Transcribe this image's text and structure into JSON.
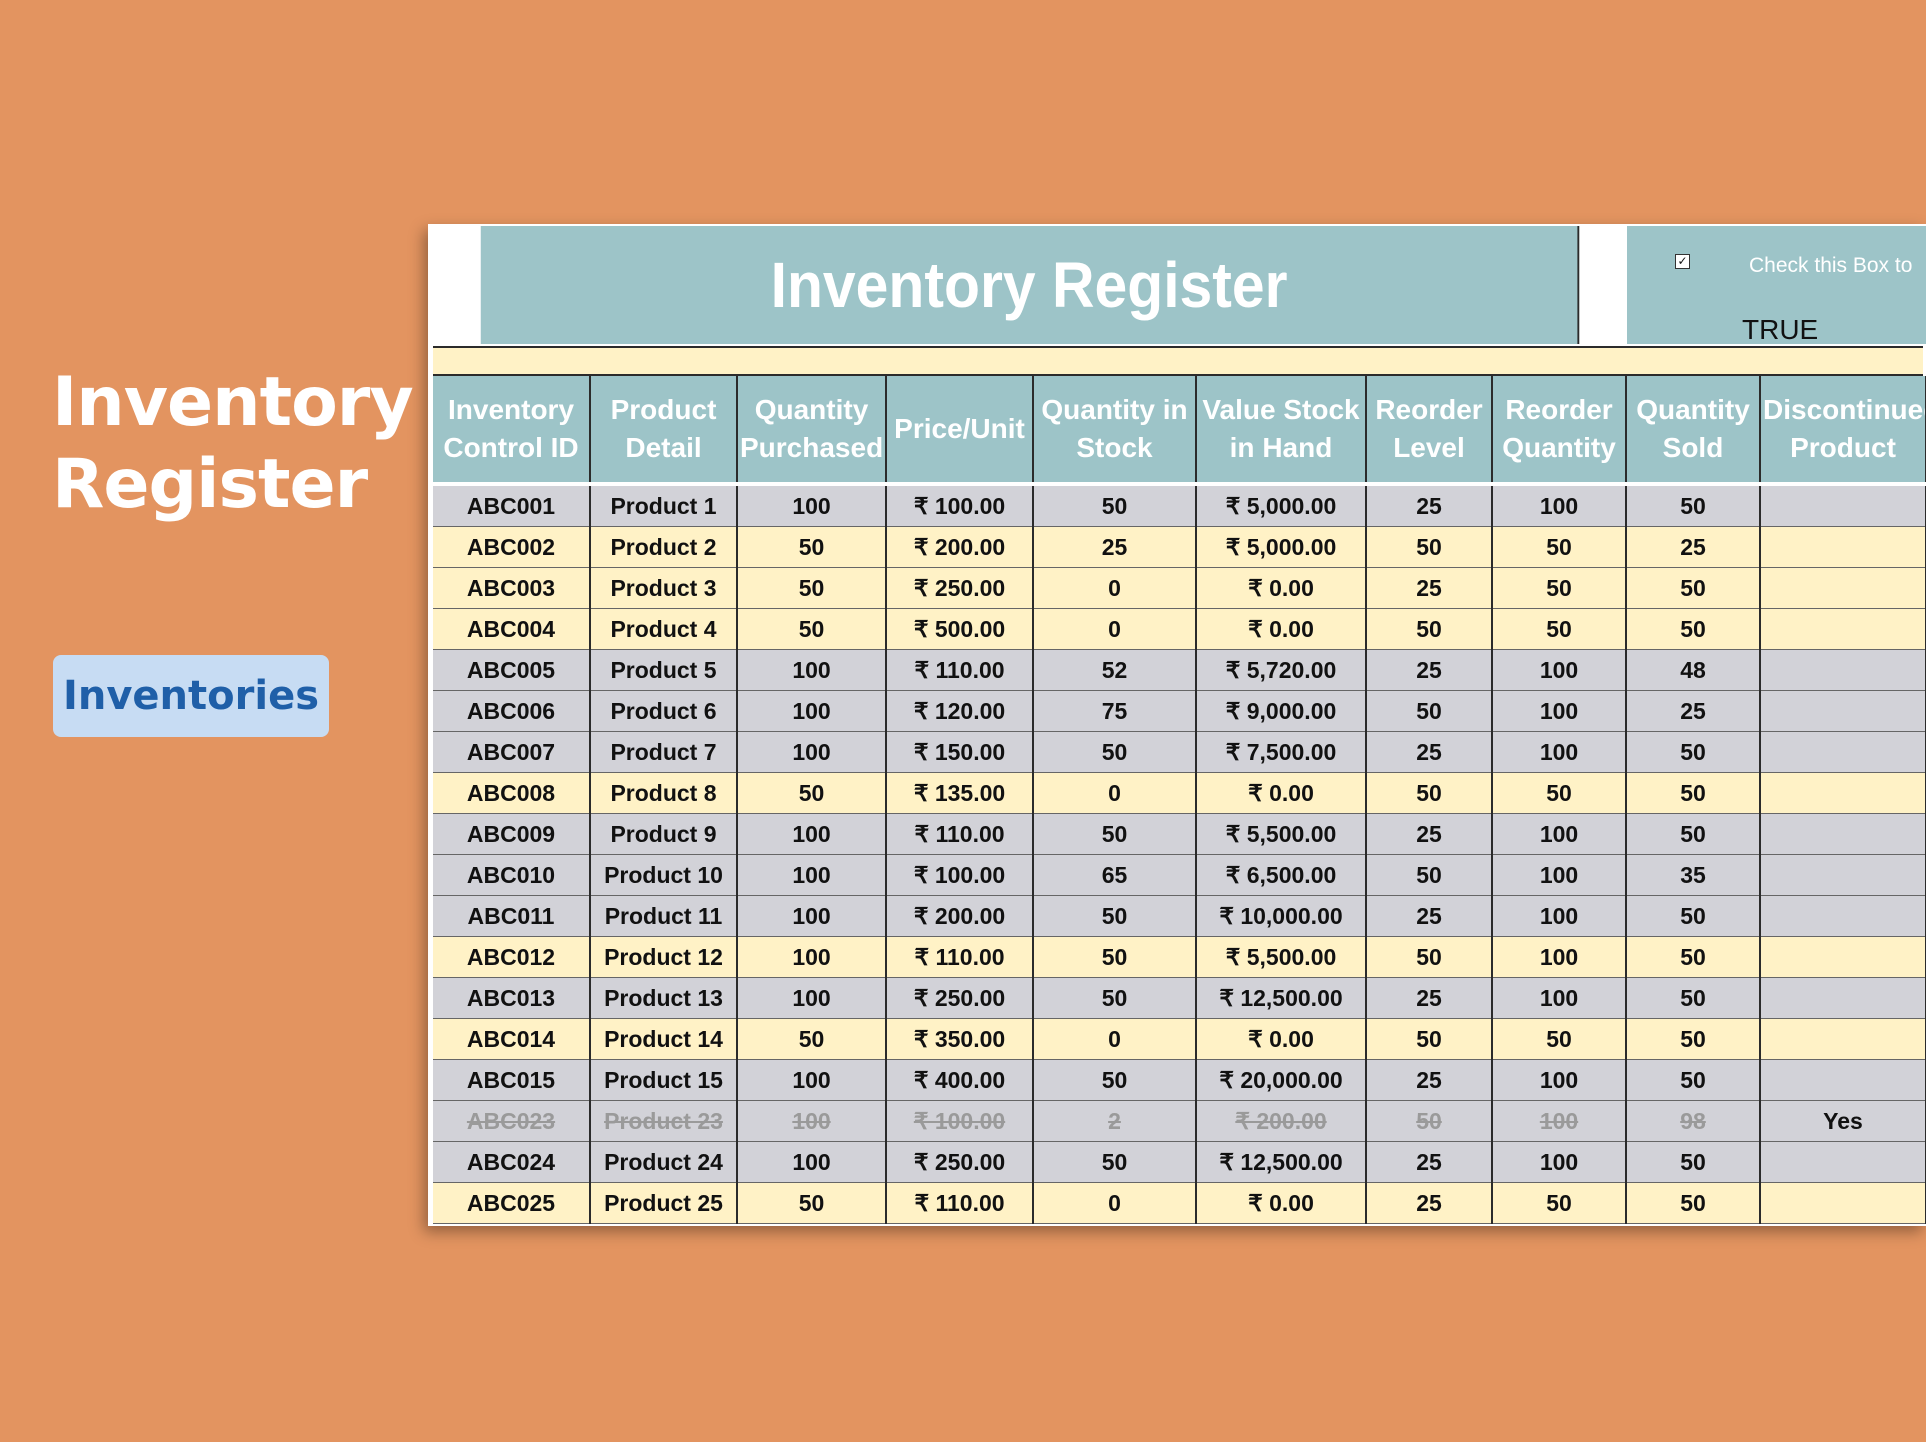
{
  "side": {
    "title_line1": "Inventory",
    "title_line2": "Register",
    "tag": "Inventories"
  },
  "sheet": {
    "title": "Inventory Register",
    "checkbox": {
      "label": "Check this Box to",
      "value": "TRUE",
      "checked": true
    },
    "columns": [
      "Inventory Control ID",
      "Product Detail",
      "Quantity Purchased",
      "Price/Unit",
      "Quantity in Stock",
      "Value Stock in Hand",
      "Reorder Level",
      "Reorder Quantity",
      "Quantity Sold",
      "Discontinued Product"
    ],
    "rows": [
      {
        "id": "ABC001",
        "product": "Product 1",
        "qty_purchased": "100",
        "price": "₹ 100.00",
        "qty_stock": "50",
        "value": "₹ 5,000.00",
        "reorder_level": "25",
        "reorder_qty": "100",
        "qty_sold": "50",
        "discontinued": "",
        "style": "gray"
      },
      {
        "id": "ABC002",
        "product": "Product 2",
        "qty_purchased": "50",
        "price": "₹ 200.00",
        "qty_stock": "25",
        "value": "₹ 5,000.00",
        "reorder_level": "50",
        "reorder_qty": "50",
        "qty_sold": "25",
        "discontinued": "",
        "style": "cream"
      },
      {
        "id": "ABC003",
        "product": "Product 3",
        "qty_purchased": "50",
        "price": "₹ 250.00",
        "qty_stock": "0",
        "value": "₹ 0.00",
        "reorder_level": "25",
        "reorder_qty": "50",
        "qty_sold": "50",
        "discontinued": "",
        "style": "cream"
      },
      {
        "id": "ABC004",
        "product": "Product 4",
        "qty_purchased": "50",
        "price": "₹ 500.00",
        "qty_stock": "0",
        "value": "₹ 0.00",
        "reorder_level": "50",
        "reorder_qty": "50",
        "qty_sold": "50",
        "discontinued": "",
        "style": "cream"
      },
      {
        "id": "ABC005",
        "product": "Product 5",
        "qty_purchased": "100",
        "price": "₹ 110.00",
        "qty_stock": "52",
        "value": "₹ 5,720.00",
        "reorder_level": "25",
        "reorder_qty": "100",
        "qty_sold": "48",
        "discontinued": "",
        "style": "gray"
      },
      {
        "id": "ABC006",
        "product": "Product 6",
        "qty_purchased": "100",
        "price": "₹ 120.00",
        "qty_stock": "75",
        "value": "₹ 9,000.00",
        "reorder_level": "50",
        "reorder_qty": "100",
        "qty_sold": "25",
        "discontinued": "",
        "style": "gray"
      },
      {
        "id": "ABC007",
        "product": "Product 7",
        "qty_purchased": "100",
        "price": "₹ 150.00",
        "qty_stock": "50",
        "value": "₹ 7,500.00",
        "reorder_level": "25",
        "reorder_qty": "100",
        "qty_sold": "50",
        "discontinued": "",
        "style": "gray"
      },
      {
        "id": "ABC008",
        "product": "Product 8",
        "qty_purchased": "50",
        "price": "₹ 135.00",
        "qty_stock": "0",
        "value": "₹ 0.00",
        "reorder_level": "50",
        "reorder_qty": "50",
        "qty_sold": "50",
        "discontinued": "",
        "style": "cream"
      },
      {
        "id": "ABC009",
        "product": "Product 9",
        "qty_purchased": "100",
        "price": "₹ 110.00",
        "qty_stock": "50",
        "value": "₹ 5,500.00",
        "reorder_level": "25",
        "reorder_qty": "100",
        "qty_sold": "50",
        "discontinued": "",
        "style": "gray"
      },
      {
        "id": "ABC010",
        "product": "Product 10",
        "qty_purchased": "100",
        "price": "₹ 100.00",
        "qty_stock": "65",
        "value": "₹ 6,500.00",
        "reorder_level": "50",
        "reorder_qty": "100",
        "qty_sold": "35",
        "discontinued": "",
        "style": "gray"
      },
      {
        "id": "ABC011",
        "product": "Product 11",
        "qty_purchased": "100",
        "price": "₹ 200.00",
        "qty_stock": "50",
        "value": "₹ 10,000.00",
        "reorder_level": "25",
        "reorder_qty": "100",
        "qty_sold": "50",
        "discontinued": "",
        "style": "gray"
      },
      {
        "id": "ABC012",
        "product": "Product 12",
        "qty_purchased": "100",
        "price": "₹ 110.00",
        "qty_stock": "50",
        "value": "₹ 5,500.00",
        "reorder_level": "50",
        "reorder_qty": "100",
        "qty_sold": "50",
        "discontinued": "",
        "style": "cream"
      },
      {
        "id": "ABC013",
        "product": "Product 13",
        "qty_purchased": "100",
        "price": "₹ 250.00",
        "qty_stock": "50",
        "value": "₹ 12,500.00",
        "reorder_level": "25",
        "reorder_qty": "100",
        "qty_sold": "50",
        "discontinued": "",
        "style": "gray"
      },
      {
        "id": "ABC014",
        "product": "Product 14",
        "qty_purchased": "50",
        "price": "₹ 350.00",
        "qty_stock": "0",
        "value": "₹ 0.00",
        "reorder_level": "50",
        "reorder_qty": "50",
        "qty_sold": "50",
        "discontinued": "",
        "style": "cream"
      },
      {
        "id": "ABC015",
        "product": "Product 15",
        "qty_purchased": "100",
        "price": "₹ 400.00",
        "qty_stock": "50",
        "value": "₹ 20,000.00",
        "reorder_level": "25",
        "reorder_qty": "100",
        "qty_sold": "50",
        "discontinued": "",
        "style": "gray"
      },
      {
        "id": "ABC023",
        "product": "Product 23",
        "qty_purchased": "100",
        "price": "₹ 100.00",
        "qty_stock": "2",
        "value": "₹ 200.00",
        "reorder_level": "50",
        "reorder_qty": "100",
        "qty_sold": "98",
        "discontinued": "Yes",
        "style": "disc"
      },
      {
        "id": "ABC024",
        "product": "Product 24",
        "qty_purchased": "100",
        "price": "₹ 250.00",
        "qty_stock": "50",
        "value": "₹ 12,500.00",
        "reorder_level": "25",
        "reorder_qty": "100",
        "qty_sold": "50",
        "discontinued": "",
        "style": "gray"
      },
      {
        "id": "ABC025",
        "product": "Product 25",
        "qty_purchased": "50",
        "price": "₹ 110.00",
        "qty_stock": "0",
        "value": "₹ 0.00",
        "reorder_level": "25",
        "reorder_qty": "50",
        "qty_sold": "50",
        "discontinued": "",
        "style": "cream"
      }
    ]
  },
  "colors": {
    "background": "#E39460",
    "header": "#9DC4C8",
    "row_gray": "#D2D2D8",
    "row_cream": "#FFF2C6",
    "tag_bg": "#C7DCF3",
    "tag_text": "#1F5FA8"
  }
}
